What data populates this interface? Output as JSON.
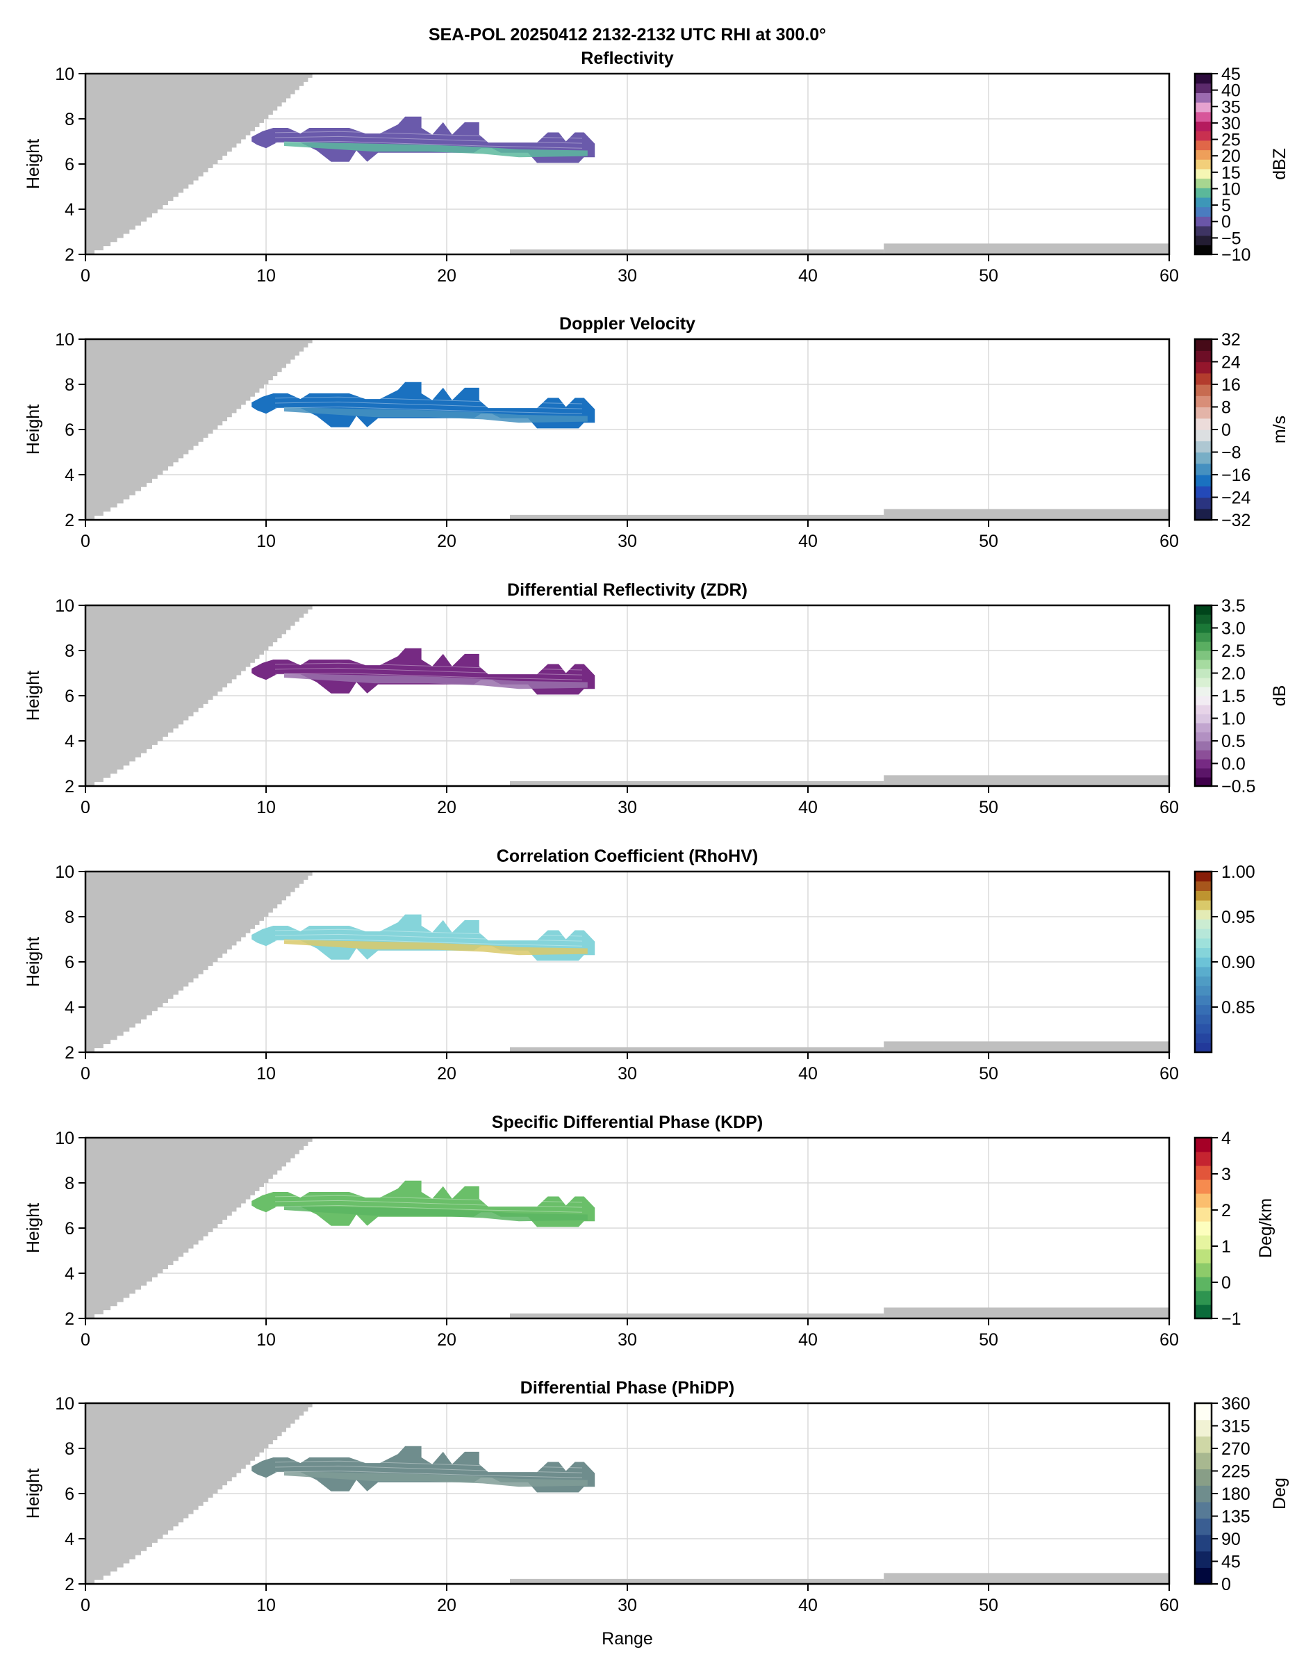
{
  "figure": {
    "suptitle": "SEA-POL 20250412 2132-2132 UTC RHI at 300.0°",
    "xlabel": "Range"
  },
  "chart_data": [
    {
      "type": "heatmap",
      "title": "Reflectivity",
      "xlabel": "",
      "ylabel": "Height",
      "xlim": [
        0,
        60
      ],
      "ylim": [
        2,
        10
      ],
      "xticks": [
        "0",
        "10",
        "20",
        "30",
        "40",
        "50",
        "60"
      ],
      "yticks": [
        "2",
        "4",
        "6",
        "8",
        "10"
      ],
      "grid": true,
      "colorbar": {
        "label": "dBZ",
        "range": [
          -10,
          45
        ],
        "ticks": [
          "−10",
          "−5",
          "0",
          "5",
          "10",
          "15",
          "20",
          "25",
          "30",
          "35",
          "40",
          "45"
        ],
        "tick_values": [
          -10,
          -5,
          0,
          5,
          10,
          15,
          20,
          25,
          30,
          35,
          40,
          45
        ],
        "colors": [
          "#050505",
          "#231d33",
          "#3e3463",
          "#6a56a8",
          "#4a7cc0",
          "#3d97b8",
          "#5bb89a",
          "#a7d690",
          "#f5f6b4",
          "#f2cf7a",
          "#ee9f5a",
          "#e06748",
          "#c93050",
          "#b51a5e",
          "#d7569a",
          "#e6a2cf",
          "#9c6bb0",
          "#5c2a6c",
          "#2c0a3c"
        ]
      },
      "echo": {
        "range_km": [
          9.2,
          28.2
        ],
        "height_km": [
          6.0,
          8.2
        ],
        "dominant_values": "-5 to 12 dBZ",
        "fill": "#6a5aab",
        "accent": "#5cb89e"
      },
      "blocked_region": true
    },
    {
      "type": "heatmap",
      "title": "Doppler Velocity",
      "xlabel": "",
      "ylabel": "Height",
      "xlim": [
        0,
        60
      ],
      "ylim": [
        2,
        10
      ],
      "xticks": [
        "0",
        "10",
        "20",
        "30",
        "40",
        "50",
        "60"
      ],
      "yticks": [
        "2",
        "4",
        "6",
        "8",
        "10"
      ],
      "grid": true,
      "colorbar": {
        "label": "m/s",
        "range": [
          -32,
          32
        ],
        "ticks": [
          "−32",
          "−24",
          "−16",
          "−8",
          "0",
          "8",
          "16",
          "24",
          "32"
        ],
        "tick_values": [
          -32,
          -24,
          -16,
          -8,
          0,
          8,
          16,
          24,
          32
        ],
        "colors": [
          "#1b1f4a",
          "#2a3480",
          "#2349b8",
          "#1a71c0",
          "#4590c0",
          "#78aec6",
          "#aec7d2",
          "#dcdfe1",
          "#ecdcda",
          "#e3b4a8",
          "#d88e78",
          "#c76b50",
          "#b33c2d",
          "#94162c",
          "#6d0e26",
          "#460a18"
        ]
      },
      "echo": {
        "range_km": [
          9.2,
          28.2
        ],
        "height_km": [
          6.0,
          8.2
        ],
        "dominant_values": "-12 to -24 m/s",
        "fill": "#1a71c0",
        "accent": "#4590c0"
      },
      "blocked_region": true
    },
    {
      "type": "heatmap",
      "title": "Differential Reflectivity (ZDR)",
      "xlabel": "",
      "ylabel": "Height",
      "xlim": [
        0,
        60
      ],
      "ylim": [
        2,
        10
      ],
      "xticks": [
        "0",
        "10",
        "20",
        "30",
        "40",
        "50",
        "60"
      ],
      "yticks": [
        "2",
        "4",
        "6",
        "8",
        "10"
      ],
      "grid": true,
      "colorbar": {
        "label": "dB",
        "range": [
          -0.5,
          3.5
        ],
        "ticks": [
          "−0.5",
          "0.0",
          "0.5",
          "1.0",
          "1.5",
          "2.0",
          "2.5",
          "3.0",
          "3.5"
        ],
        "tick_values": [
          -0.5,
          0.0,
          0.5,
          1.0,
          1.5,
          2.0,
          2.5,
          3.0,
          3.5
        ],
        "colors": [
          "#40004b",
          "#5b1568",
          "#762a83",
          "#8c4f98",
          "#9970ab",
          "#b290c2",
          "#c2a5cf",
          "#dac6e1",
          "#e7d4e8",
          "#f2ecf3",
          "#edf3ed",
          "#d9f0d3",
          "#c4e8c1",
          "#a6dba0",
          "#7fc47f",
          "#5aae61",
          "#3a934c",
          "#1b7837",
          "#0f5e2a",
          "#00441b"
        ]
      },
      "echo": {
        "range_km": [
          9.2,
          28.2
        ],
        "height_km": [
          6.0,
          8.2
        ],
        "dominant_values": "-0.5 to 0.5 dB",
        "fill": "#762a83",
        "accent": "#9970ab"
      },
      "blocked_region": true
    },
    {
      "type": "heatmap",
      "title": "Correlation Coefficient (RhoHV)",
      "xlabel": "",
      "ylabel": "Height",
      "xlim": [
        0,
        60
      ],
      "ylim": [
        2,
        10
      ],
      "xticks": [
        "0",
        "10",
        "20",
        "30",
        "40",
        "50",
        "60"
      ],
      "yticks": [
        "2",
        "4",
        "6",
        "8",
        "10"
      ],
      "grid": true,
      "colorbar": {
        "label": "",
        "range": [
          0.8,
          1.0
        ],
        "ticks": [
          "0.85",
          "0.90",
          "0.95",
          "1.00"
        ],
        "tick_values": [
          0.85,
          0.9,
          0.95,
          1.0
        ],
        "colors": [
          "#22399a",
          "#2545a0",
          "#2a53a8",
          "#3060ad",
          "#366eb4",
          "#3f7eba",
          "#478ebf",
          "#4f9cc4",
          "#5aadcd",
          "#6cc3d7",
          "#85d4da",
          "#9ee1db",
          "#b6e7d9",
          "#cbecd2",
          "#e4ebb5",
          "#d9c96a",
          "#be9430",
          "#a7561c",
          "#871d08"
        ]
      },
      "echo": {
        "range_km": [
          9.2,
          28.2
        ],
        "height_km": [
          6.0,
          8.2
        ],
        "dominant_values": "0.88 to 0.99",
        "fill": "#85d4da",
        "accent": "#d9c96a"
      },
      "blocked_region": true
    },
    {
      "type": "heatmap",
      "title": "Specific Differential Phase (KDP)",
      "xlabel": "",
      "ylabel": "Height",
      "xlim": [
        0,
        60
      ],
      "ylim": [
        2,
        10
      ],
      "xticks": [
        "0",
        "10",
        "20",
        "30",
        "40",
        "50",
        "60"
      ],
      "yticks": [
        "−1",
        "0",
        "1",
        "2",
        "3",
        "4"
      ],
      "yticks_main": [
        "2",
        "4",
        "6",
        "8",
        "10"
      ],
      "grid": true,
      "colorbar": {
        "label": "Deg/km",
        "range": [
          -1,
          4
        ],
        "ticks": [
          "−1",
          "0",
          "1",
          "2",
          "3",
          "4"
        ],
        "tick_values": [
          -1,
          0,
          1,
          2,
          3,
          4
        ],
        "colors": [
          "#0b6b3a",
          "#2e9450",
          "#5db562",
          "#8dcb6a",
          "#bde27c",
          "#e6f4a0",
          "#fdfebe",
          "#fde496",
          "#fbbe6e",
          "#f68b4f",
          "#e2553a",
          "#c52430",
          "#a50026"
        ]
      },
      "echo": {
        "range_km": [
          9.2,
          28.2
        ],
        "height_km": [
          6.0,
          8.2
        ],
        "dominant_values": "-0.3 to 0.3 Deg/km",
        "fill": "#6abf69",
        "accent": "#5bb563"
      },
      "blocked_region": true
    },
    {
      "type": "heatmap",
      "title": "Differential Phase (PhiDP)",
      "xlabel": "Range",
      "ylabel": "Height",
      "xlim": [
        0,
        60
      ],
      "ylim": [
        2,
        10
      ],
      "xticks": [
        "0",
        "10",
        "20",
        "30",
        "40",
        "50",
        "60"
      ],
      "yticks": [
        "2",
        "4",
        "6",
        "8",
        "10"
      ],
      "grid": true,
      "colorbar": {
        "label": "Deg",
        "range": [
          0,
          360
        ],
        "ticks": [
          "0",
          "45",
          "90",
          "135",
          "180",
          "225",
          "270",
          "315",
          "360"
        ],
        "tick_values": [
          0,
          45,
          90,
          135,
          180,
          225,
          270,
          315,
          360
        ],
        "colors": [
          "#00073d",
          "#0f2460",
          "#22417f",
          "#3a5e92",
          "#577a96",
          "#6f8d8d",
          "#889e87",
          "#a8b890",
          "#cfd7a6",
          "#f1f2d4",
          "#fffff5"
        ]
      },
      "echo": {
        "range_km": [
          9.2,
          28.2
        ],
        "height_km": [
          6.0,
          8.2
        ],
        "dominant_values": "~190-200 Deg",
        "fill": "#6f8d8d",
        "accent": "#809c96"
      },
      "blocked_region": true
    }
  ]
}
